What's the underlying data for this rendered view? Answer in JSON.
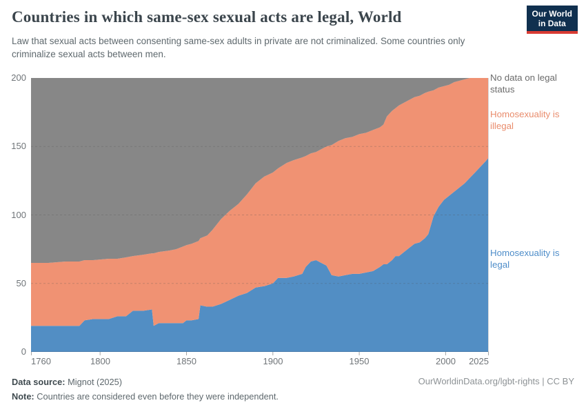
{
  "header": {
    "title": "Countries in which same-sex sexual acts are legal, World",
    "subtitle": "Law that sexual acts between consenting same-sex adults in private are not criminalized. Some countries only criminalize sexual acts between men.",
    "logo": {
      "line1": "Our World",
      "line2": "in Data"
    }
  },
  "legend": {
    "no_data": "No data on legal status",
    "illegal": "Homosexuality is illegal",
    "legal": "Homosexuality is legal"
  },
  "axes": {
    "x_ticks": [
      "1760",
      "1800",
      "1850",
      "1900",
      "1950",
      "2000",
      "2025"
    ],
    "y_ticks": [
      "0",
      "50",
      "100",
      "150",
      "200"
    ]
  },
  "footer": {
    "source_label": "Data source:",
    "source_value": "Mignot (2025)",
    "note_label": "Note:",
    "note_value": "Countries are considered even before they were independent.",
    "citation": "OurWorldinData.org/lgbt-rights | CC BY"
  },
  "colors": {
    "legal": "#528EC4",
    "illegal": "#F09273",
    "no_data": "#878787",
    "gridline": "rgba(80,80,80,0.28)",
    "tick": "#a6a6a6",
    "plot_border": "#d6d8da"
  },
  "chart_data": {
    "type": "area",
    "stacked": true,
    "title": "Countries in which same-sex sexual acts are legal, World",
    "x_range": [
      1760,
      2025
    ],
    "y_range": [
      0,
      200
    ],
    "x_tick_values": [
      1760,
      1800,
      1850,
      1900,
      1950,
      2000,
      2025
    ],
    "y_gridlines": [
      50,
      100,
      150
    ],
    "legend_position": "right",
    "grid": true,
    "x": [
      1760,
      1770,
      1780,
      1788,
      1791,
      1796,
      1805,
      1810,
      1815,
      1819,
      1825,
      1830,
      1831,
      1834,
      1840,
      1844,
      1848,
      1850,
      1853,
      1857,
      1858,
      1862,
      1865,
      1870,
      1875,
      1880,
      1885,
      1890,
      1895,
      1900,
      1903,
      1908,
      1912,
      1917,
      1919,
      1922,
      1925,
      1928,
      1931,
      1934,
      1938,
      1942,
      1946,
      1950,
      1954,
      1958,
      1962,
      1964,
      1966,
      1969,
      1971,
      1973,
      1976,
      1979,
      1982,
      1985,
      1988,
      1990,
      1993,
      1996,
      1999,
      2002,
      2005,
      2008,
      2011,
      2014,
      2017,
      2020,
      2023,
      2025
    ],
    "series": [
      {
        "id": "legal",
        "name": "Homosexuality is legal",
        "color": "#528EC4",
        "values": [
          19,
          19,
          19,
          19,
          23,
          24,
          24,
          26,
          26,
          30,
          30,
          31,
          19,
          21,
          21,
          21,
          21,
          23,
          23,
          24,
          34,
          33,
          33,
          35,
          38,
          41,
          43,
          47,
          48,
          50,
          54,
          54,
          55,
          57,
          62,
          66,
          67,
          65,
          63,
          56,
          55,
          56,
          57,
          57,
          58,
          59,
          62,
          64,
          64,
          67,
          70,
          70,
          73,
          76,
          79,
          80,
          83,
          86,
          99,
          106,
          111,
          114,
          117,
          120,
          123,
          127,
          131,
          135,
          139,
          142
        ]
      },
      {
        "id": "illegal",
        "name": "Homosexuality is illegal",
        "color": "#F09273",
        "values": [
          46,
          46,
          47,
          47,
          44,
          43,
          44,
          42,
          43,
          40,
          41,
          41,
          53,
          52,
          53,
          54,
          56,
          55,
          56,
          57,
          49,
          52,
          56,
          62,
          65,
          67,
          72,
          76,
          80,
          81,
          80,
          84,
          85,
          85,
          81,
          79,
          79,
          83,
          87,
          95,
          99,
          100,
          100,
          102,
          102,
          103,
          102,
          102,
          108,
          109,
          108,
          110,
          109,
          108,
          107,
          107,
          106,
          104,
          92,
          87,
          83,
          81,
          80,
          78,
          76,
          73,
          69,
          65,
          61,
          58
        ]
      },
      {
        "id": "no-data",
        "name": "No data on legal status",
        "color": "#878787",
        "values": [
          135,
          135,
          134,
          134,
          133,
          133,
          132,
          132,
          131,
          130,
          129,
          128,
          128,
          127,
          126,
          125,
          123,
          122,
          121,
          119,
          117,
          115,
          111,
          103,
          97,
          92,
          85,
          77,
          72,
          69,
          66,
          62,
          60,
          58,
          57,
          55,
          54,
          52,
          50,
          49,
          46,
          44,
          43,
          41,
          40,
          38,
          36,
          34,
          28,
          24,
          22,
          20,
          18,
          16,
          14,
          13,
          11,
          10,
          9,
          7,
          6,
          5,
          3,
          2,
          1,
          0,
          0,
          0,
          0,
          0
        ]
      }
    ]
  }
}
